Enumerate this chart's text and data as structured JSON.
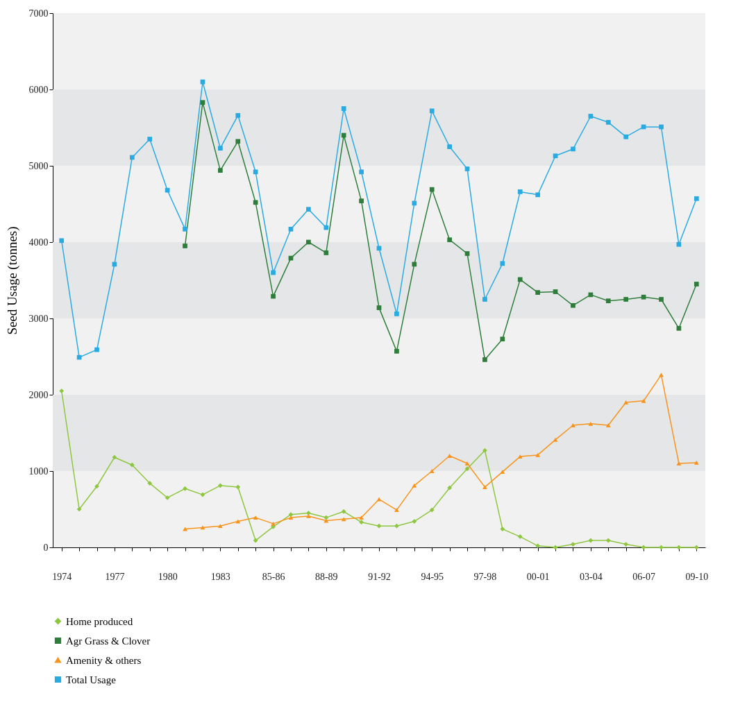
{
  "chart_data": {
    "type": "line",
    "ylabel": "Seed Usage (tonnes)",
    "categories": [
      "1974",
      null,
      null,
      "1977",
      null,
      null,
      "1980",
      null,
      null,
      "1983",
      null,
      null,
      "85-86",
      null,
      null,
      "88-89",
      null,
      null,
      "91-92",
      null,
      null,
      "94-95",
      null,
      null,
      "97-98",
      null,
      null,
      "00-01",
      null,
      null,
      "03-04",
      null,
      null,
      "06-07",
      null,
      null,
      "09-10"
    ],
    "series": [
      {
        "name": "Home produced",
        "color": "#8dc63f",
        "marker": "diamond",
        "values": [
          2050,
          500,
          800,
          1180,
          1080,
          840,
          650,
          770,
          690,
          810,
          790,
          90,
          270,
          430,
          450,
          390,
          470,
          330,
          280,
          280,
          340,
          490,
          780,
          1030,
          1270,
          240,
          140,
          20,
          0,
          40,
          90,
          90,
          40,
          0,
          0,
          0,
          0
        ]
      },
      {
        "name": "Agr Grass & Clover",
        "color": "#2e7d3a",
        "marker": "square",
        "values": [
          null,
          null,
          null,
          null,
          null,
          null,
          null,
          3950,
          5830,
          4940,
          5320,
          4520,
          3290,
          3790,
          4000,
          3860,
          5400,
          4540,
          3140,
          2570,
          3710,
          4690,
          4030,
          3850,
          2460,
          2730,
          3510,
          3340,
          3350,
          3170,
          3310,
          3230,
          3250,
          3280,
          3250,
          2870,
          3450
        ]
      },
      {
        "name": "Amenity & others",
        "color": "#f7941d",
        "marker": "triangle",
        "values": [
          null,
          null,
          null,
          null,
          null,
          null,
          null,
          240,
          260,
          280,
          340,
          390,
          310,
          390,
          410,
          350,
          370,
          390,
          630,
          490,
          810,
          1000,
          1200,
          1100,
          790,
          990,
          1190,
          1210,
          1410,
          1600,
          1620,
          1600,
          1900,
          1920,
          2260,
          1100,
          1110
        ]
      },
      {
        "name": "Total Usage",
        "color": "#29abe2",
        "marker": "square",
        "values": [
          4020,
          2490,
          2590,
          3710,
          5110,
          5350,
          4680,
          4170,
          6100,
          5230,
          5660,
          4920,
          3600,
          4170,
          4430,
          4190,
          5750,
          4920,
          3920,
          3060,
          4510,
          5720,
          5250,
          4960,
          3250,
          3720,
          4660,
          4620,
          5130,
          5220,
          5650,
          5570,
          5380,
          5510,
          5510,
          3970,
          4570
        ]
      }
    ],
    "ylim": [
      0,
      7000
    ],
    "yticks": [
      0,
      1000,
      2000,
      3000,
      4000,
      5000,
      6000,
      7000
    ],
    "bands": [
      {
        "axis": "y",
        "from": 1000,
        "to": 2000,
        "color": "#e5e6e7"
      },
      {
        "axis": "y",
        "from": 3000,
        "to": 4000,
        "color": "#e5e6e7"
      },
      {
        "axis": "y",
        "from": 5000,
        "to": 6000,
        "color": "#e5e6e7"
      }
    ],
    "grid": false,
    "legend": "bottom",
    "line_style": "solid"
  }
}
